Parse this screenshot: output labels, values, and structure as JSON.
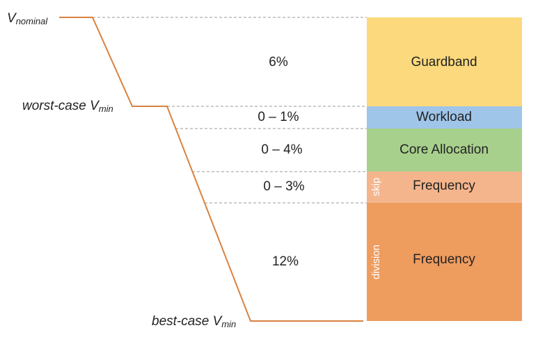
{
  "voltage_labels": [
    {
      "text": "V",
      "subscript": "nominal"
    },
    {
      "text": "worst-case V",
      "subscript": "min"
    },
    {
      "text": "best-case V",
      "subscript": "min"
    }
  ],
  "margins": [
    "6%",
    "0 – 1%",
    "0 – 4%",
    "0 – 3%",
    "12%"
  ],
  "blocks": [
    {
      "label": "Guardband"
    },
    {
      "label": "Workload"
    },
    {
      "label": "Core Allocation"
    },
    {
      "label": "Frequency",
      "side_label": "skip"
    },
    {
      "label": "Frequency",
      "side_label": "division"
    }
  ]
}
